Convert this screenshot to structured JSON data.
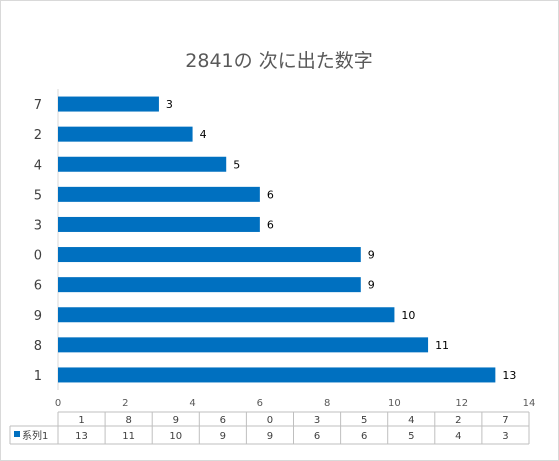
{
  "chart_data": {
    "type": "bar",
    "orientation": "horizontal",
    "title": "2841の 次に出た数字",
    "categories": [
      "7",
      "2",
      "4",
      "5",
      "3",
      "0",
      "6",
      "9",
      "8",
      "1"
    ],
    "values": [
      3,
      4,
      5,
      6,
      6,
      9,
      9,
      10,
      11,
      13
    ],
    "series": [
      {
        "name": "系列1",
        "values": [
          3,
          4,
          5,
          6,
          6,
          9,
          9,
          10,
          11,
          13
        ]
      }
    ],
    "xlim": [
      0,
      14
    ],
    "x_ticks": [
      0,
      2,
      4,
      6,
      8,
      10,
      12,
      14
    ],
    "grid": false,
    "bar_color": "#0070c0",
    "data_table": {
      "header": [
        "1",
        "8",
        "9",
        "6",
        "0",
        "3",
        "5",
        "4",
        "2",
        "7"
      ],
      "row_label": "系列1",
      "row_values": [
        "13",
        "11",
        "10",
        "9",
        "9",
        "6",
        "6",
        "5",
        "4",
        "3"
      ]
    }
  }
}
